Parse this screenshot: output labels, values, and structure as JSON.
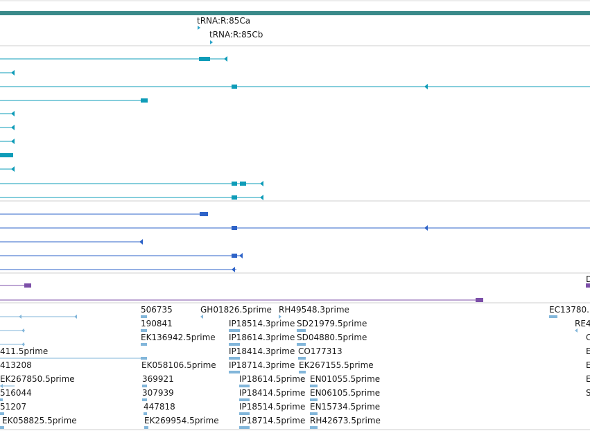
{
  "colors": {
    "scale_bar": "#3a8a8a",
    "trna": "#2ba3c8",
    "gene_teal": "#0e9cb8",
    "gene_blue": "#2e63c8",
    "gene_purple": "#7c4fa8",
    "est": "#82b6da",
    "separator": "#cfcfcf"
  },
  "trna_features": [
    {
      "name": "tRNA:R:85Ca"
    },
    {
      "name": "tRNA:R:85Cb"
    }
  ],
  "est_labels": [
    [
      "",
      "506735",
      "GH01826.5prime",
      "RH49548.3prime",
      "EC13780."
    ],
    [
      "",
      "190841",
      "IP18514.3prime",
      "SD21979.5prime",
      "RE4"
    ],
    [
      "",
      "EK136942.5prime",
      "IP18614.3prime",
      "SD04880.5prime",
      "C"
    ],
    [
      "411.5prime",
      "",
      "IP18414.3prime",
      "CO177313",
      "E"
    ],
    [
      "413208",
      "EK058106.5prime",
      "IP18714.3prime",
      "EK267155.5prime",
      "E"
    ],
    [
      "EK267850.5prime",
      "369921",
      "IP18614.5prime",
      "EN01055.5prime",
      "E"
    ],
    [
      "516044",
      "307939",
      "IP18414.5prime",
      "EN06105.5prime",
      "S"
    ],
    [
      "51207",
      "447818",
      "IP18514.5prime",
      "EN15734.5prime",
      ""
    ],
    [
      "EK058825.5prime",
      "EK269954.5prime",
      "IP18714.5prime",
      "RH42673.5prime",
      ""
    ]
  ],
  "right_edge_label": "D"
}
